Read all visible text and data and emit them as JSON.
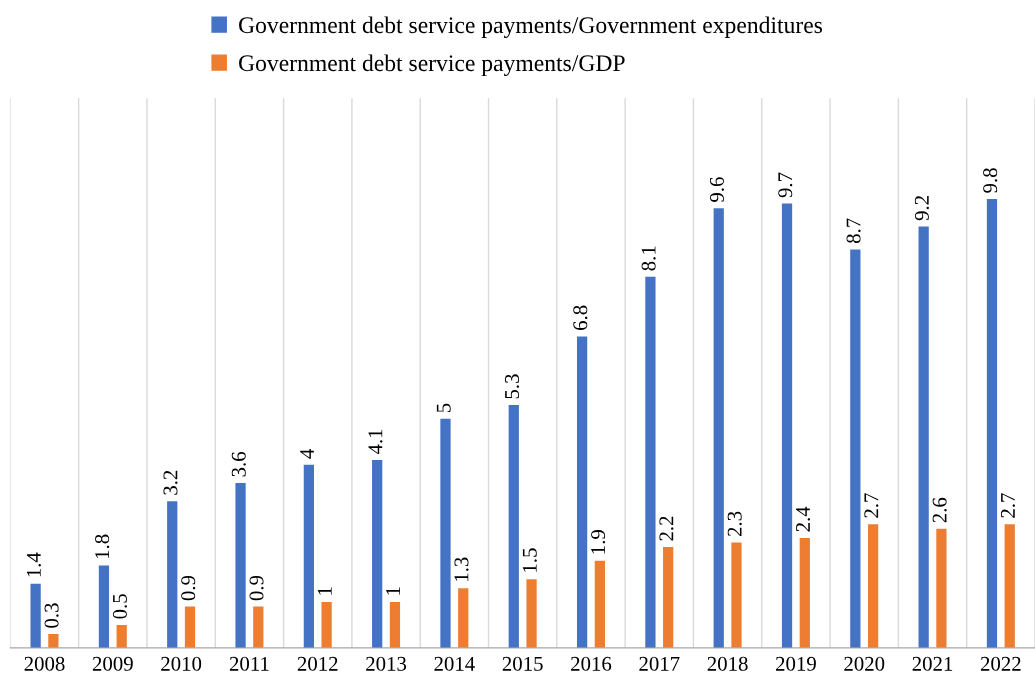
{
  "chart_data": {
    "type": "bar",
    "categories": [
      "2008",
      "2009",
      "2010",
      "2011",
      "2012",
      "2013",
      "2014",
      "2015",
      "2016",
      "2017",
      "2018",
      "2019",
      "2020",
      "2021",
      "2022"
    ],
    "series": [
      {
        "name": "Government debt service payments/Government expenditures",
        "color": "#4472c4",
        "values": [
          1.4,
          1.8,
          3.2,
          3.6,
          4,
          4.1,
          5,
          5.3,
          6.8,
          8.1,
          9.6,
          9.7,
          8.7,
          9.2,
          9.8
        ]
      },
      {
        "name": "Government debt service payments/GDP",
        "color": "#ed7d31",
        "values": [
          0.3,
          0.5,
          0.9,
          0.9,
          1,
          1,
          1.3,
          1.5,
          1.9,
          2.2,
          2.3,
          2.4,
          2.7,
          2.6,
          2.7
        ]
      }
    ],
    "ylim": [
      0,
      12
    ],
    "data_labels": true,
    "grid": "x",
    "legend": "top",
    "tick_labels": "x"
  }
}
